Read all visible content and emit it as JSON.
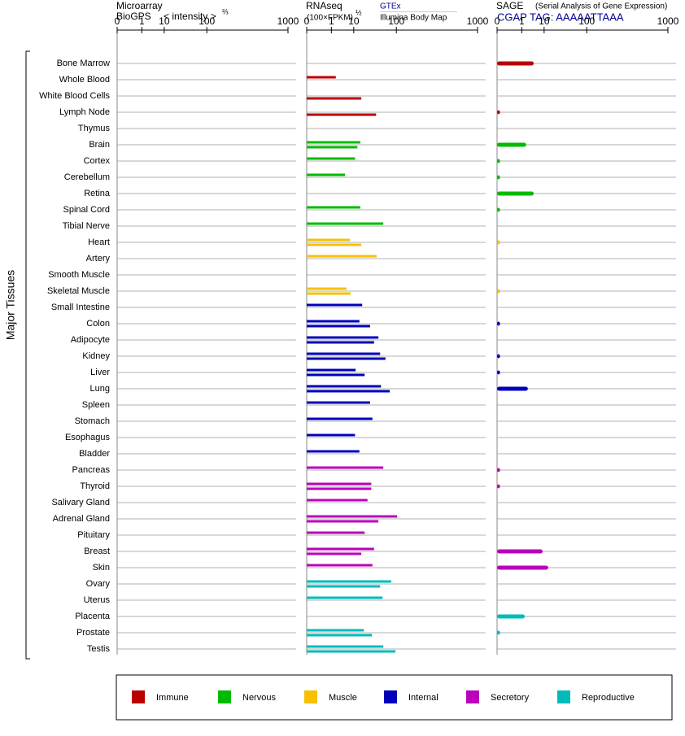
{
  "chart_data": {
    "type": "bar",
    "ylabel": "Major Tissues",
    "categories": [
      "Bone Marrow",
      "Whole Blood",
      "White Blood Cells",
      "Lymph Node",
      "Thymus",
      "Brain",
      "Cortex",
      "Cerebellum",
      "Retina",
      "Spinal Cord",
      "Tibial Nerve",
      "Heart",
      "Artery",
      "Smooth Muscle",
      "Skeletal Muscle",
      "Small Intestine",
      "Colon",
      "Adipocyte",
      "Kidney",
      "Liver",
      "Lung",
      "Spleen",
      "Stomach",
      "Esophagus",
      "Bladder",
      "Pancreas",
      "Thyroid",
      "Salivary Gland",
      "Adrenal Gland",
      "Pituitary",
      "Breast",
      "Skin",
      "Ovary",
      "Uterus",
      "Placenta",
      "Prostate",
      "Testis"
    ],
    "category_groups": [
      0,
      0,
      0,
      0,
      0,
      1,
      1,
      1,
      1,
      1,
      1,
      2,
      2,
      2,
      2,
      3,
      3,
      3,
      3,
      3,
      3,
      3,
      3,
      3,
      3,
      4,
      4,
      4,
      4,
      4,
      4,
      4,
      5,
      5,
      5,
      5,
      5
    ],
    "legend": [
      {
        "name": "Immune",
        "color": "#bb0000"
      },
      {
        "name": "Nervous",
        "color": "#00bb00"
      },
      {
        "name": "Muscle",
        "color": "#f7c000"
      },
      {
        "name": "Internal",
        "color": "#0000bb"
      },
      {
        "name": "Secretory",
        "color": "#bb00bb"
      },
      {
        "name": "Reproductive",
        "color": "#00bbbb"
      }
    ],
    "panels": [
      {
        "title": "Microarray",
        "subtitle": "BioGPS",
        "xlabel": "< intensity >",
        "xlabel_power": "⅔",
        "xlim": [
          0,
          1000
        ],
        "xticks": [
          0,
          1,
          10,
          100,
          1000
        ],
        "xscale": "power",
        "xexponent": 0.28
      },
      {
        "title": "RNAseq",
        "xlabel": "(100×FPKM)",
        "xlabel_power": "½",
        "xlim": [
          0,
          1000
        ],
        "xticks": [
          0,
          1,
          10,
          100,
          1000
        ],
        "xscale": "power",
        "xexponent": 0.28,
        "series": [
          {
            "name": "GTEx",
            "values": [
              null,
              1.8,
              null,
              null,
              null,
              16,
              11,
              4.8,
              null,
              16,
              57,
              7.3,
              41,
              null,
              5.5,
              18,
              15,
              45,
              49,
              11.5,
              51,
              29,
              33,
              11,
              15,
              57,
              31,
              25,
              103,
              21,
              36,
              33,
              81,
              55,
              null,
              20,
              57
            ]
          },
          {
            "name": "Illumina Body Map",
            "values": [
              null,
              null,
              17,
              40,
              null,
              13,
              null,
              null,
              null,
              null,
              null,
              17,
              null,
              null,
              7.8,
              null,
              29,
              36,
              63,
              21,
              76,
              null,
              null,
              null,
              null,
              null,
              31,
              null,
              45,
              null,
              17,
              null,
              49,
              null,
              null,
              32,
              96
            ]
          }
        ]
      },
      {
        "title": "SAGE",
        "subtitle": "(Serial Analysis of Gene Expression)",
        "xlim": [
          0,
          1000
        ],
        "xticks": [
          0,
          1,
          10,
          100,
          1000
        ],
        "xscale": "power",
        "xexponent": 0.28,
        "series": [
          {
            "name": "CGAP TAG: AAAAATTAAA",
            "values": [
              4.1,
              null,
              null,
              0.0005,
              null,
              1.8,
              0.0005,
              0.0005,
              4.1,
              0.0005,
              null,
              0.0005,
              null,
              null,
              0.0005,
              null,
              0.0005,
              null,
              0.0005,
              0.0005,
              2.2,
              null,
              null,
              null,
              null,
              0.0005,
              0.0005,
              null,
              null,
              null,
              8.9,
              13.5,
              null,
              null,
              1.5,
              0.0005,
              null
            ]
          }
        ]
      }
    ]
  }
}
